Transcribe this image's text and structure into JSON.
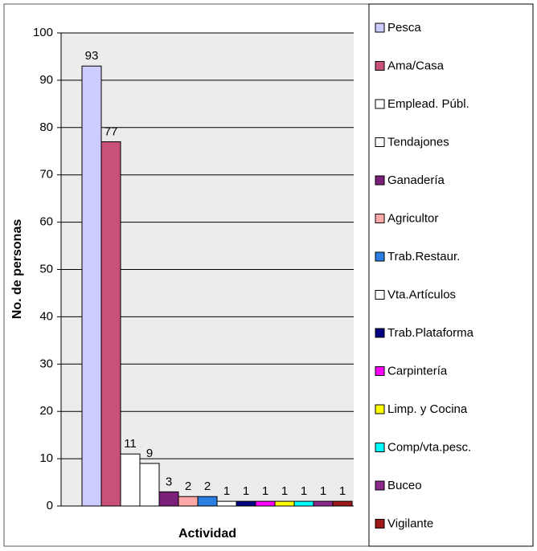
{
  "chart_data": {
    "type": "bar",
    "y_label": "No. de personas",
    "x_label": "Actividad",
    "ylim": [
      0,
      100
    ],
    "yticks": [
      0,
      10,
      20,
      30,
      40,
      50,
      60,
      70,
      80,
      90,
      100
    ],
    "grid": true,
    "legend": "right",
    "series": [
      {
        "name": "Pesca",
        "color": "#ccccff",
        "values": [
          93
        ]
      },
      {
        "name": "Ama/Casa",
        "color": "#c8507a",
        "values": [
          77
        ]
      },
      {
        "name": "Emplead. Públ.",
        "color": "#ffffff",
        "values": [
          11
        ]
      },
      {
        "name": "Tendajones",
        "color": "#ffffff",
        "values": [
          9
        ]
      },
      {
        "name": "Ganadería",
        "color": "#7b1f7b",
        "values": [
          3
        ]
      },
      {
        "name": "Agricultor",
        "color": "#ffa8a8",
        "values": [
          2
        ]
      },
      {
        "name": "Trab.Restaur.",
        "color": "#2a7fe0",
        "values": [
          2
        ]
      },
      {
        "name": "Vta.Artículos",
        "color": "#ffffff",
        "values": [
          1
        ]
      },
      {
        "name": "Trab.Plataforma",
        "color": "#000080",
        "values": [
          1
        ]
      },
      {
        "name": "Carpintería",
        "color": "#ff00ff",
        "values": [
          1
        ]
      },
      {
        "name": "Limp. y Cocina",
        "color": "#ffff00",
        "values": [
          1
        ]
      },
      {
        "name": "Comp/vta.pesc.",
        "color": "#00ffff",
        "values": [
          1
        ]
      },
      {
        "name": "Buceo",
        "color": "#8b2a8b",
        "values": [
          1
        ]
      },
      {
        "name": "Vigilante",
        "color": "#a01818",
        "values": [
          1
        ]
      }
    ]
  }
}
